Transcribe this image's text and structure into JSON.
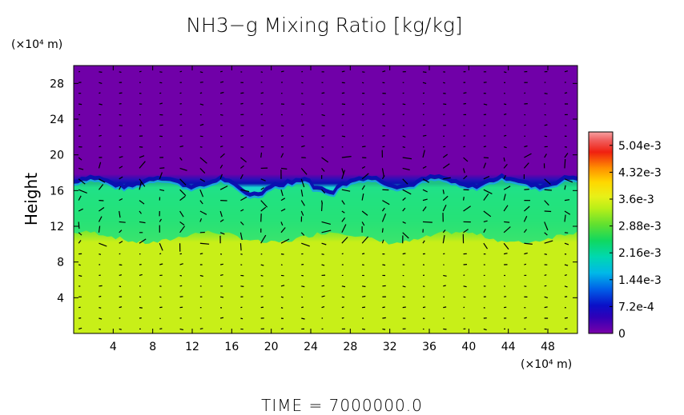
{
  "chart_data": {
    "type": "heatmap",
    "title": "NH3−g Mixing Ratio [kg/kg]",
    "ylabel": "Height",
    "x_unit": "(×10⁴ m)",
    "y_unit": "(×10⁴ m)",
    "xlim": [
      0,
      51
    ],
    "ylim": [
      0,
      30
    ],
    "x_ticks": [
      "4",
      "8",
      "12",
      "16",
      "20",
      "24",
      "28",
      "32",
      "36",
      "40",
      "44",
      "48"
    ],
    "x_tick_values": [
      4,
      8,
      12,
      16,
      20,
      24,
      28,
      32,
      36,
      40,
      44,
      48
    ],
    "y_ticks": [
      "4",
      "8",
      "12",
      "16",
      "20",
      "24",
      "28"
    ],
    "y_tick_values": [
      4,
      8,
      12,
      16,
      20,
      24,
      28
    ],
    "colorbar": {
      "min": 0,
      "max": 0.0054,
      "labels": [
        "5.04e-3",
        "4.32e-3",
        "3.6e-3",
        "2.88e-3",
        "2.16e-3",
        "1.44e-3",
        "7.2e-4",
        "0"
      ],
      "label_values": [
        0.00504,
        0.00432,
        0.0036,
        0.00288,
        0.00216,
        0.00144,
        0.00072,
        0
      ]
    },
    "field_summary": {
      "lower_layer_value": 0.0036,
      "lower_layer_top_height": 10.5,
      "transition_layer_value": 0.0023,
      "cloud_top_height": 17,
      "upper_layer_value": 0
    },
    "overlay": "wind vectors",
    "grid": false
  },
  "footer": {
    "time_label": "TIME  =  7000000.0"
  },
  "colors": {
    "upper_purple": "#7000a8",
    "lower_yellow_green": "#c8ef18",
    "mid_green": "#20e070",
    "cyan": "#18d8d0",
    "dark_blue": "#0a10b0"
  }
}
